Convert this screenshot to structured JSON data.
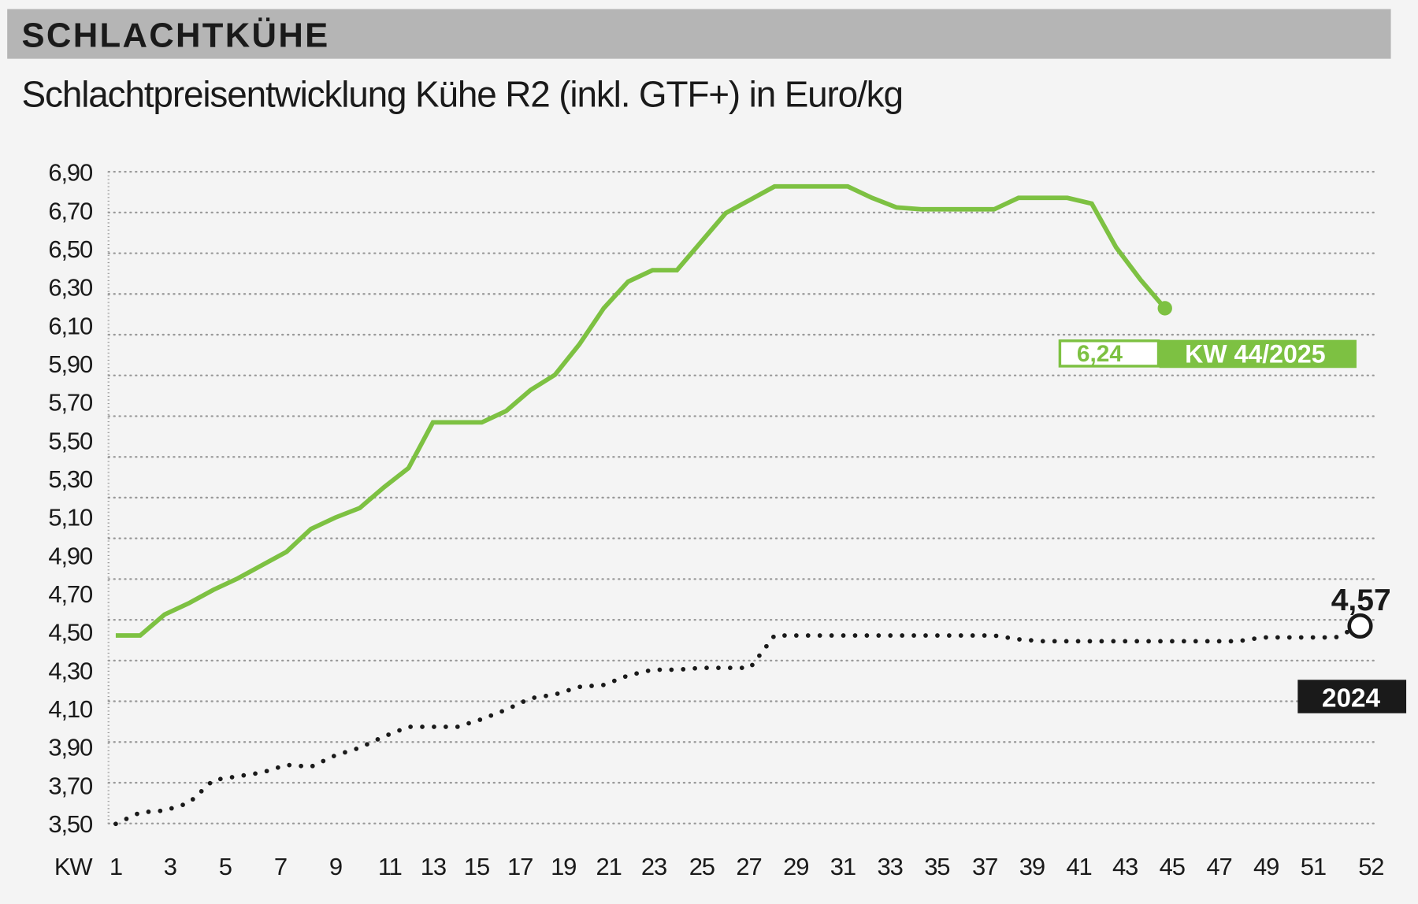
{
  "header": {
    "kicker": "SCHLACHTKÜHE",
    "title": "Schlachtpreisentwicklung Kühe R2 (inkl. GTF+) in Euro/kg"
  },
  "colors": {
    "current": "#7dc142",
    "previous": "#1a1a1a",
    "header_band": "#b5b5b5",
    "background": "#f4f4f4"
  },
  "chart_data": {
    "type": "line",
    "title": "Schlachtpreisentwicklung Kühe R2 (inkl. GTF+) in Euro/kg",
    "xlabel": "KW",
    "ylabel": "",
    "ylim": [
      3.5,
      6.9
    ],
    "xlim": [
      1,
      52
    ],
    "grid": true,
    "y_ticks": [
      "6,90",
      "6,70",
      "6,50",
      "6,30",
      "6,10",
      "5,90",
      "5,70",
      "5,50",
      "5,30",
      "5,10",
      "4,90",
      "4,70",
      "4,50",
      "4,30",
      "4,10",
      "3,90",
      "3,70",
      "3,50"
    ],
    "y_tick_values": [
      6.9,
      6.7,
      6.5,
      6.3,
      6.1,
      5.9,
      5.7,
      5.5,
      5.3,
      5.1,
      4.9,
      4.7,
      4.5,
      4.3,
      4.1,
      3.9,
      3.7,
      3.5
    ],
    "x_ticks": [
      "1",
      "3",
      "5",
      "7",
      "9",
      "11",
      "13",
      "15",
      "17",
      "19",
      "21",
      "23",
      "25",
      "27",
      "29",
      "31",
      "33",
      "35",
      "37",
      "39",
      "41",
      "43",
      "45",
      "47",
      "49",
      "51",
      "52"
    ],
    "series": [
      {
        "name": "KW 44/2025",
        "style": "solid",
        "x": [
          1,
          2,
          3,
          4,
          5,
          6,
          7,
          8,
          9,
          10,
          11,
          12,
          13,
          14,
          15,
          16,
          17,
          18,
          19,
          20,
          21,
          22,
          23,
          24,
          25,
          26,
          27,
          28,
          29,
          30,
          31,
          32,
          33,
          34,
          35,
          36,
          37,
          38,
          39,
          40,
          41,
          42,
          43,
          44
        ],
        "values": [
          4.52,
          4.52,
          4.63,
          4.69,
          4.76,
          4.82,
          4.89,
          4.96,
          5.08,
          5.14,
          5.19,
          5.3,
          5.4,
          5.64,
          5.64,
          5.64,
          5.7,
          5.81,
          5.89,
          6.05,
          6.24,
          6.38,
          6.44,
          6.44,
          6.59,
          6.74,
          6.81,
          6.88,
          6.88,
          6.88,
          6.88,
          6.82,
          6.77,
          6.76,
          6.76,
          6.76,
          6.76,
          6.82,
          6.82,
          6.82,
          6.79,
          6.56,
          6.39,
          6.24
        ],
        "end_label": "6,24",
        "tag": "KW 44/2025"
      },
      {
        "name": "2024",
        "style": "dotted",
        "x": [
          1,
          2,
          3,
          4,
          5,
          6,
          7,
          8,
          9,
          10,
          11,
          12,
          13,
          14,
          15,
          16,
          17,
          18,
          19,
          20,
          21,
          22,
          23,
          24,
          25,
          26,
          27,
          28,
          29,
          30,
          31,
          32,
          33,
          34,
          35,
          36,
          37,
          38,
          39,
          40,
          41,
          42,
          43,
          44,
          45,
          46,
          47,
          48,
          49,
          50,
          51,
          52
        ],
        "values": [
          3.53,
          3.59,
          3.6,
          3.64,
          3.76,
          3.78,
          3.8,
          3.84,
          3.83,
          3.89,
          3.93,
          3.99,
          4.04,
          4.04,
          4.04,
          4.08,
          4.13,
          4.19,
          4.21,
          4.25,
          4.26,
          4.31,
          4.34,
          4.34,
          4.35,
          4.35,
          4.35,
          4.52,
          4.52,
          4.52,
          4.52,
          4.52,
          4.52,
          4.52,
          4.52,
          4.52,
          4.52,
          4.5,
          4.49,
          4.49,
          4.49,
          4.49,
          4.49,
          4.49,
          4.49,
          4.49,
          4.49,
          4.51,
          4.51,
          4.51,
          4.51,
          4.57
        ],
        "end_label": "4,57",
        "tag": "2024"
      }
    ]
  }
}
